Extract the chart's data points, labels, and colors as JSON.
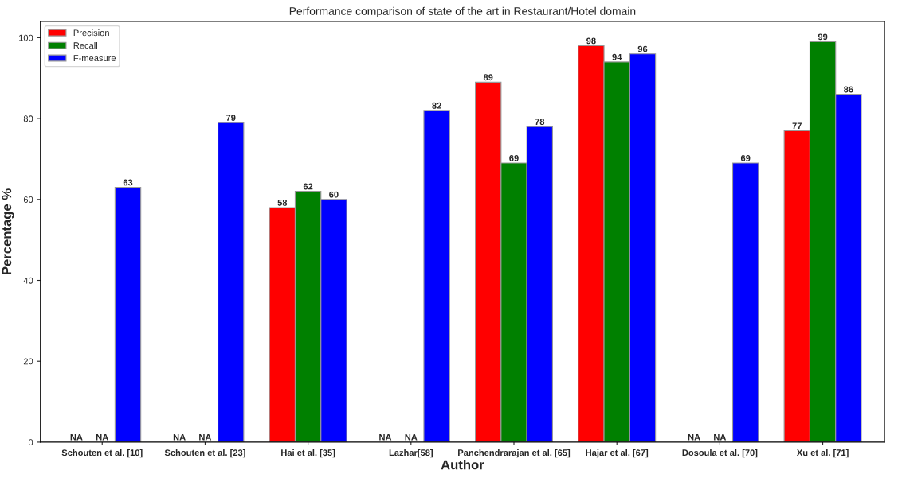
{
  "chart_data": {
    "type": "bar",
    "title": "Performance comparison of state of the art in Restaurant/Hotel domain",
    "xlabel": "Author",
    "ylabel": "Percentage %",
    "categories": [
      "Schouten et al. [10]",
      "Schouten et al. [23]",
      "Hai et al. [35]",
      "Lazhar[58]",
      "Panchendrarajan et al. [65]",
      "Hajar et al. [67]",
      "Dosoula et al. [70]",
      "Xu et al. [71]"
    ],
    "series": [
      {
        "name": "Precision",
        "color": "#ff0000",
        "values": [
          null,
          null,
          58,
          null,
          89,
          98,
          null,
          77
        ],
        "value_labels": [
          "NA",
          "NA",
          "58",
          "NA",
          "89",
          "98",
          "NA",
          "77"
        ]
      },
      {
        "name": "Recall",
        "color": "#008000",
        "values": [
          null,
          null,
          62,
          null,
          69,
          94,
          null,
          99
        ],
        "value_labels": [
          "NA",
          "NA",
          "62",
          "NA",
          "69",
          "94",
          "NA",
          "99"
        ]
      },
      {
        "name": "F-measure",
        "color": "#0000ff",
        "values": [
          63,
          79,
          60,
          82,
          78,
          96,
          69,
          86
        ],
        "value_labels": [
          "63",
          "79",
          "60",
          "82",
          "78",
          "96",
          "69",
          "86"
        ]
      }
    ],
    "ylim": [
      0,
      104
    ],
    "yticks": [
      0,
      20,
      40,
      60,
      80,
      100
    ],
    "grid": false,
    "legend": "top left"
  }
}
